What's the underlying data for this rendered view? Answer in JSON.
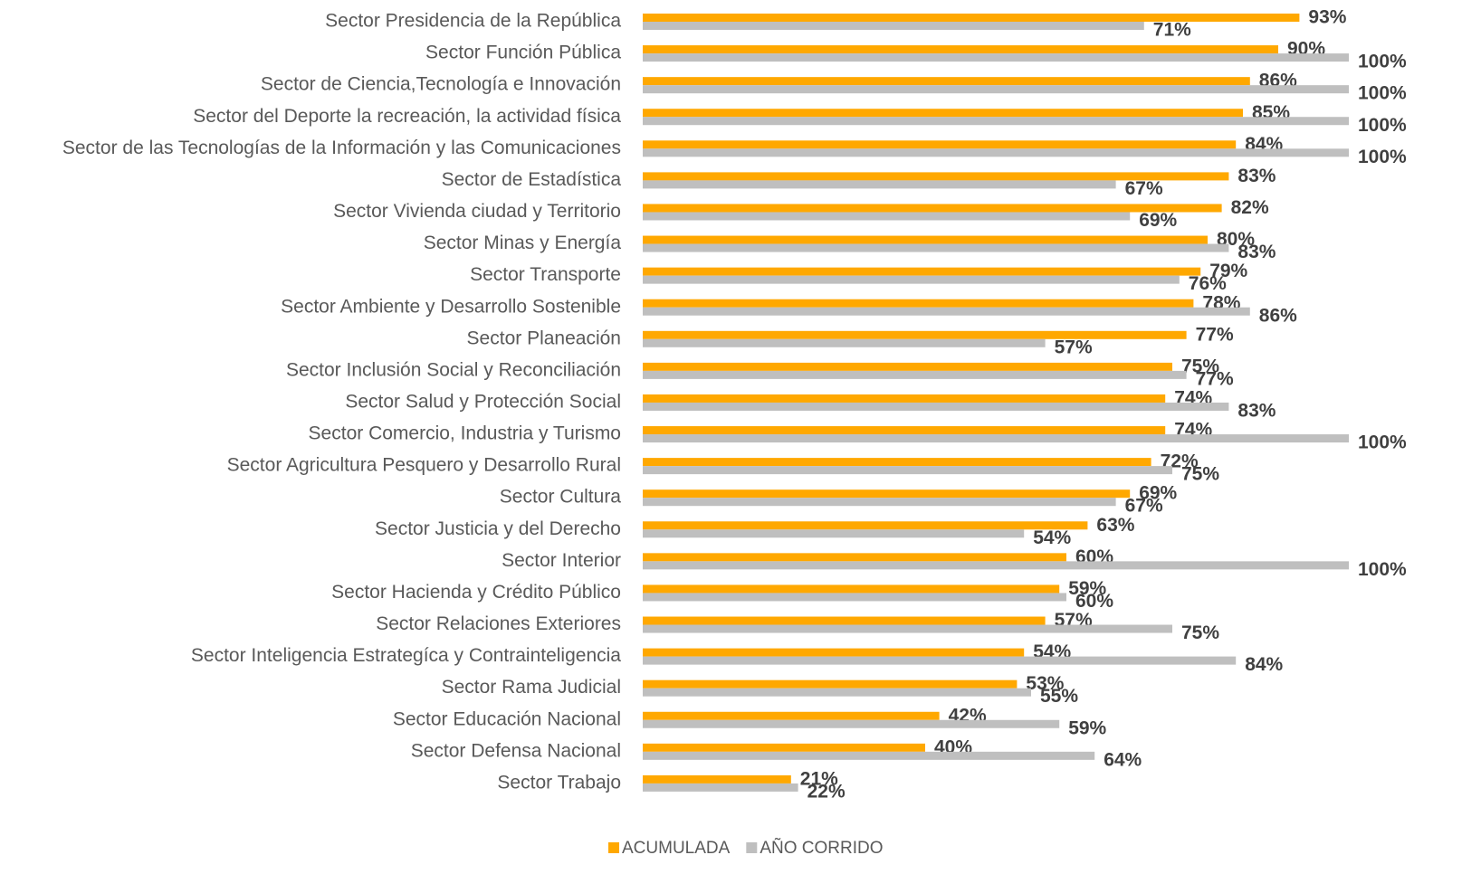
{
  "chart_data": {
    "type": "bar",
    "orientation": "horizontal",
    "categories": [
      "Sector Presidencia de la República",
      "Sector Función Pública",
      "Sector de Ciencia,Tecnología e Innovación",
      "Sector del Deporte la recreación, la actividad física",
      "Sector de las Tecnologías de la Información y las Comunicaciones",
      "Sector de Estadística",
      "Sector Vivienda ciudad y Territorio",
      "Sector Minas y Energía",
      "Sector Transporte",
      "Sector Ambiente y Desarrollo Sostenible",
      "Sector Planeación",
      "Sector Inclusión Social y Reconciliación",
      "Sector Salud y Protección Social",
      "Sector Comercio, Industria y Turismo",
      "Sector Agricultura Pesquero y Desarrollo Rural",
      "Sector Cultura",
      "Sector Justicia y del Derecho ",
      "Sector Interior",
      "Sector Hacienda y Crédito Público",
      "Sector Relaciones Exteriores",
      "Sector Inteligencia Estrategíca y Contrainteligencia",
      "Sector Rama Judicial",
      "Sector Educación Nacional",
      "Sector Defensa Nacional ",
      "Sector Trabajo"
    ],
    "series": [
      {
        "name": "ACUMULADA",
        "color": "#FFA800",
        "values": [
          93,
          90,
          86,
          85,
          84,
          83,
          82,
          80,
          79,
          78,
          77,
          75,
          74,
          74,
          72,
          69,
          63,
          60,
          59,
          57,
          54,
          53,
          42,
          40,
          21
        ],
        "value_labels": [
          "93%",
          "90%",
          "86%",
          "85%",
          "84%",
          "83%",
          "82%",
          "80%",
          "79%",
          "78%",
          "77%",
          "75%",
          "74%",
          "74%",
          "72%",
          "69%",
          "63%",
          "60%",
          "59%",
          "57%",
          "54%",
          "53%",
          "42%",
          "40%",
          "21%"
        ]
      },
      {
        "name": "AÑO CORRIDO",
        "color": "#BFBFBF",
        "values": [
          71,
          100,
          100,
          100,
          100,
          67,
          69,
          83,
          76,
          86,
          57,
          77,
          83,
          100,
          75,
          67,
          54,
          100,
          60,
          75,
          84,
          55,
          59,
          64,
          22
        ],
        "value_labels": [
          "71%",
          "100%",
          "100%",
          "100%",
          "100%",
          "67%",
          "69%",
          "83%",
          "76%",
          "86%",
          "57%",
          "77%",
          "83%",
          "100%",
          "75%",
          "67%",
          "54%",
          "100%",
          "60%",
          "75%",
          "84%",
          "55%",
          "59%",
          "64%",
          "22%"
        ]
      }
    ],
    "legend": "bottom"
  }
}
